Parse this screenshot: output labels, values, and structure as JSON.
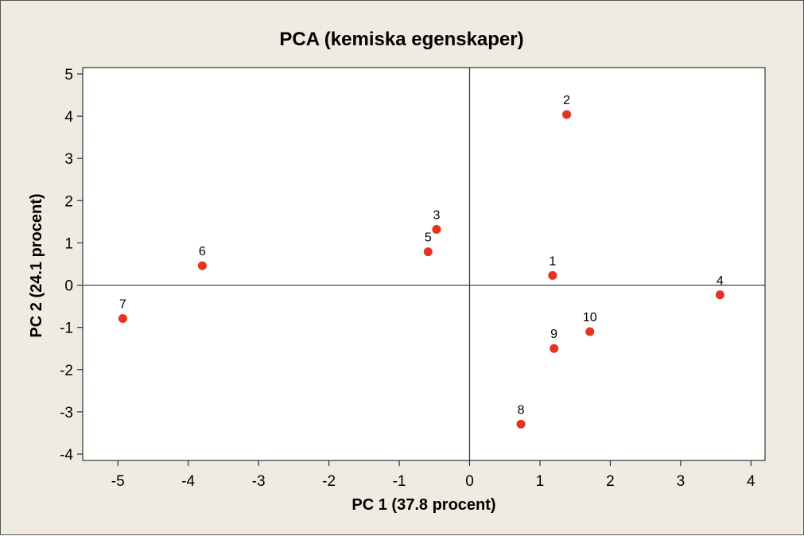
{
  "chart_data": {
    "type": "scatter",
    "title": "PCA (kemiska egenskaper)",
    "xlabel": "PC 1 (37.8 procent)",
    "ylabel": "PC 2 (24.1 procent)",
    "xlim": [
      -5.5,
      4.2
    ],
    "ylim": [
      -4.15,
      5.15
    ],
    "xticks": [
      -5,
      -4,
      -3,
      -2,
      -1,
      0,
      1,
      2,
      3,
      4
    ],
    "yticks": [
      -4,
      -3,
      -2,
      -1,
      0,
      1,
      2,
      3,
      4,
      5
    ],
    "reference_lines": {
      "x": 0,
      "y": 0
    },
    "grid": false,
    "marker_color": "#e8321e",
    "points": [
      {
        "label": "1",
        "x": 1.18,
        "y": 0.23
      },
      {
        "label": "2",
        "x": 1.38,
        "y": 4.04
      },
      {
        "label": "3",
        "x": -0.47,
        "y": 1.32
      },
      {
        "label": "4",
        "x": 3.56,
        "y": -0.23
      },
      {
        "label": "5",
        "x": -0.59,
        "y": 0.79
      },
      {
        "label": "6",
        "x": -3.8,
        "y": 0.46
      },
      {
        "label": "7",
        "x": -4.93,
        "y": -0.79
      },
      {
        "label": "8",
        "x": 0.73,
        "y": -3.29
      },
      {
        "label": "9",
        "x": 1.2,
        "y": -1.5
      },
      {
        "label": "10",
        "x": 1.71,
        "y": -1.1
      }
    ]
  }
}
